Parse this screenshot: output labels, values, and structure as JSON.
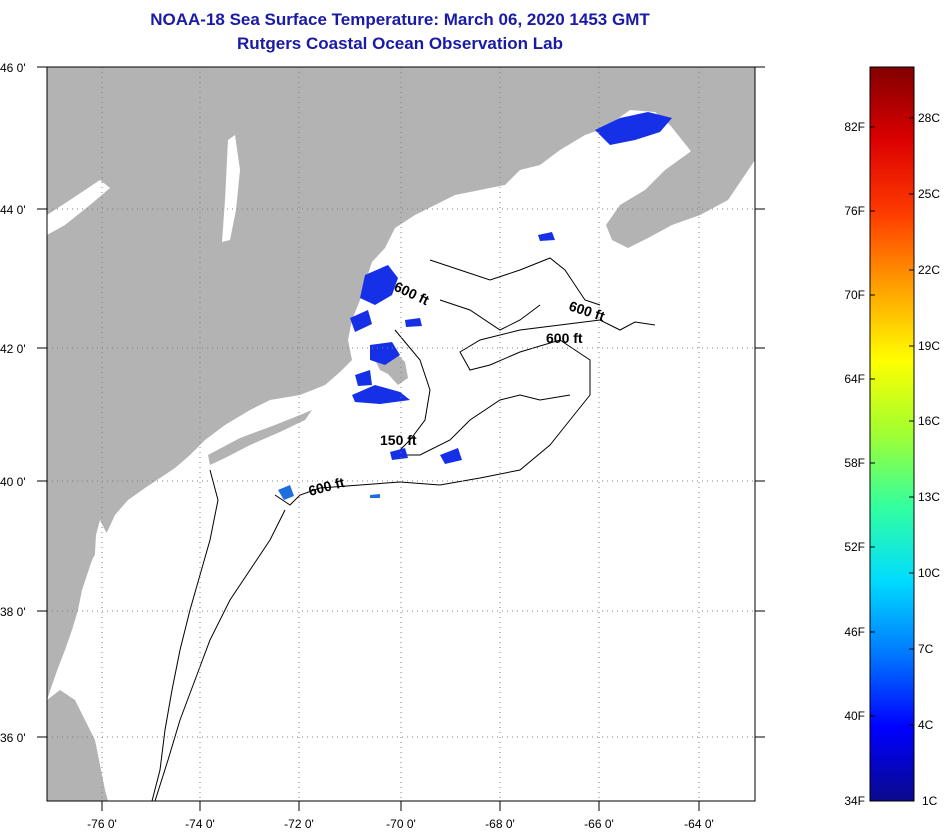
{
  "header": {
    "title": "NOAA-18 Sea Surface Temperature:  March 06, 2020 1453 GMT",
    "subtitle": "Rutgers Coastal Ocean Observation Lab"
  },
  "map": {
    "lat_labels": [
      "46 0'",
      "44 0'",
      "42 0'",
      "40 0'",
      "38 0'",
      "36 0'"
    ],
    "lon_labels": [
      "-76 0'",
      "-74 0'",
      "-72 0'",
      "-70 0'",
      "-68 0'",
      "-66 0'",
      "-64 0'"
    ],
    "contour_labels": [
      "600 ft",
      "600 ft",
      "600 ft",
      "150 ft",
      "600 ft"
    ],
    "colors": {
      "land": "#b3b3b3",
      "water": "#ffffff",
      "cold_sst": "#1530e6",
      "mid_sst": "#1e6ee0"
    }
  },
  "colorbar": {
    "f_labels": [
      "82F",
      "76F",
      "70F",
      "64F",
      "58F",
      "52F",
      "46F",
      "40F",
      "34F"
    ],
    "c_labels": [
      "28C",
      "25C",
      "22C",
      "19C",
      "16C",
      "13C",
      "10C",
      "7C",
      "4C",
      "1C"
    ],
    "gradient": [
      "#0a0a8c",
      "#0000ff",
      "#0078ff",
      "#00dcff",
      "#32ffa0",
      "#a0ff32",
      "#ffff00",
      "#ffa000",
      "#ff3c00",
      "#dc0000",
      "#820000"
    ]
  }
}
